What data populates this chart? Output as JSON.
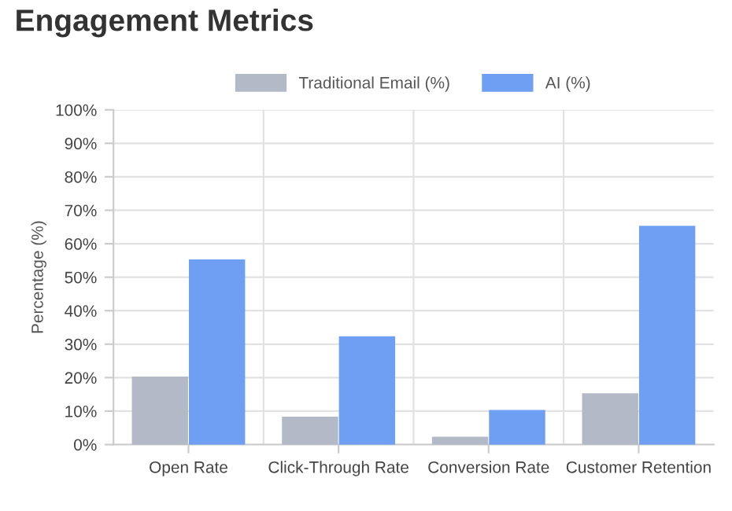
{
  "chart_data": {
    "type": "bar",
    "title": "Engagement Metrics",
    "ylabel": "Percentage (%)",
    "categories": [
      "Open Rate",
      "Click-Through Rate",
      "Conversion Rate",
      "Customer Retention"
    ],
    "series": [
      {
        "name": "Traditional Email (%)",
        "color": "#b3b9c6",
        "values": [
          20,
          8,
          2,
          15
        ]
      },
      {
        "name": "AI (%)",
        "color": "#6e9ff2",
        "values": [
          55,
          32,
          10,
          65
        ]
      }
    ],
    "ylim": [
      0,
      100
    ],
    "yticks": [
      {
        "value": 0,
        "label": "0%"
      },
      {
        "value": 10,
        "label": "10%"
      },
      {
        "value": 20,
        "label": "20%"
      },
      {
        "value": 30,
        "label": "30%"
      },
      {
        "value": 40,
        "label": "40%"
      },
      {
        "value": 50,
        "label": "50%"
      },
      {
        "value": 60,
        "label": "60%"
      },
      {
        "value": 70,
        "label": "70%"
      },
      {
        "value": 80,
        "label": "80%"
      },
      {
        "value": 90,
        "label": "90%"
      },
      {
        "value": 100,
        "label": "100%"
      }
    ],
    "grid": true,
    "legend": "top"
  }
}
